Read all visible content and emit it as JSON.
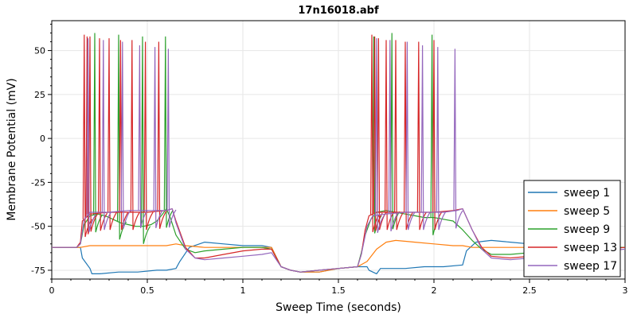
{
  "chart_data": {
    "type": "line",
    "title": "17n16018.abf",
    "xlabel": "Sweep Time (seconds)",
    "ylabel": "Membrane Potential (mV)",
    "xlim": [
      0,
      3
    ],
    "ylim": [
      -80,
      67
    ],
    "xticks": [
      0,
      0.5,
      1,
      1.5,
      2,
      2.5,
      3
    ],
    "xtick_labels": [
      "0",
      "0.5",
      "1",
      "1.5",
      "2",
      "2.5",
      "3"
    ],
    "yticks": [
      -75,
      -50,
      -25,
      0,
      25,
      50
    ],
    "ytick_labels": [
      "-75",
      "-50",
      "-25",
      "0",
      "25",
      "50"
    ],
    "grid": true,
    "legend_position": "bottom-right",
    "series": [
      {
        "name": "sweep 1",
        "color": "#1f77b4",
        "x": [
          0,
          0.15,
          0.16,
          0.2,
          0.21,
          0.25,
          0.35,
          0.45,
          0.55,
          0.6,
          0.65,
          0.67,
          0.72,
          0.8,
          0.9,
          1.0,
          1.1,
          1.15,
          1.2,
          1.25,
          1.3,
          1.4,
          1.5,
          1.6,
          1.65,
          1.66,
          1.7,
          1.72,
          1.75,
          1.85,
          1.95,
          2.05,
          2.15,
          2.15,
          2.17,
          2.22,
          2.3,
          2.4,
          2.5,
          2.55,
          2.6,
          2.7,
          2.8,
          2.9,
          3.0
        ],
        "y": [
          -62,
          -62,
          -68,
          -74,
          -77,
          -77,
          -76,
          -76,
          -75,
          -75,
          -74,
          -70,
          -62,
          -59,
          -60,
          -61,
          -61,
          -62,
          -73,
          -75,
          -76,
          -76,
          -74,
          -73,
          -73,
          -75,
          -77,
          -74,
          -74,
          -74,
          -73,
          -73,
          -72,
          -72,
          -64,
          -59,
          -58,
          -59,
          -60,
          -61,
          -62,
          -61,
          -62,
          -62,
          -62
        ]
      },
      {
        "name": "sweep 5",
        "color": "#ff7f0e",
        "x": [
          0,
          0.15,
          0.2,
          0.3,
          0.4,
          0.5,
          0.6,
          0.65,
          0.7,
          0.8,
          0.9,
          1.0,
          1.1,
          1.15,
          1.2,
          1.25,
          1.3,
          1.4,
          1.5,
          1.6,
          1.65,
          1.7,
          1.75,
          1.8,
          1.9,
          2.0,
          2.1,
          2.15,
          2.2,
          2.3,
          2.4,
          2.5,
          2.6,
          2.7,
          2.8,
          2.9,
          3.0
        ],
        "y": [
          -62,
          -62,
          -61,
          -61,
          -61,
          -61,
          -61,
          -60,
          -61,
          -62,
          -62,
          -62,
          -62,
          -62,
          -73,
          -75,
          -76,
          -76,
          -74,
          -73,
          -70,
          -63,
          -59,
          -58,
          -59,
          -60,
          -61,
          -61,
          -62,
          -62,
          -62,
          -62,
          -62,
          -62,
          -62,
          -62,
          -62
        ]
      },
      {
        "name": "sweep 9",
        "color": "#2ca02c",
        "x": [
          0,
          0.13,
          0.15,
          0.17,
          0.2,
          0.24,
          0.28,
          0.32,
          0.36,
          0.4,
          0.44,
          0.48,
          0.52,
          0.55,
          0.58,
          0.6,
          0.62,
          0.65,
          0.7,
          0.75,
          0.8,
          0.9,
          1.0,
          1.1,
          1.15,
          1.2,
          1.25,
          1.3,
          1.4,
          1.5,
          1.6,
          1.62,
          1.64,
          1.67,
          1.7,
          1.75,
          1.8,
          1.85,
          1.9,
          1.95,
          2.0,
          2.05,
          2.1,
          2.15,
          2.2,
          2.25,
          2.3,
          2.4,
          2.5,
          2.6,
          2.7,
          2.8,
          2.9,
          3.0
        ],
        "y": [
          -62,
          -62,
          -60,
          -49,
          -44,
          -43,
          -44,
          -46,
          -48,
          -49,
          -50,
          -50,
          -49,
          -47,
          -43,
          -40,
          -45,
          -55,
          -63,
          -65,
          -64,
          -63,
          -62,
          -62,
          -63,
          -73,
          -75,
          -76,
          -75,
          -74,
          -73,
          -65,
          -55,
          -46,
          -42,
          -41,
          -42,
          -43,
          -44,
          -45,
          -45,
          -46,
          -47,
          -52,
          -58,
          -63,
          -66,
          -66,
          -65,
          -64,
          -63,
          -62,
          -62,
          -62
        ],
        "spikes": [
          [
            0.225,
            60
          ],
          [
            0.35,
            59
          ],
          [
            0.475,
            58
          ],
          [
            0.595,
            58
          ],
          [
            1.685,
            58
          ],
          [
            1.78,
            60
          ],
          [
            1.99,
            59
          ]
        ]
      },
      {
        "name": "sweep 13",
        "color": "#d62728",
        "x": [
          0,
          0.13,
          0.15,
          0.16,
          0.2,
          0.3,
          0.4,
          0.5,
          0.6,
          0.63,
          0.65,
          0.7,
          0.75,
          0.8,
          0.9,
          1.0,
          1.1,
          1.15,
          1.2,
          1.25,
          1.3,
          1.4,
          1.5,
          1.6,
          1.62,
          1.64,
          1.66,
          1.7,
          1.8,
          1.9,
          2.0,
          2.1,
          2.15,
          2.2,
          2.25,
          2.3,
          2.4,
          2.5,
          2.6,
          2.7,
          2.8,
          2.9,
          3.0
        ],
        "y": [
          -62,
          -62,
          -59,
          -47,
          -43,
          -42,
          -42,
          -42,
          -41,
          -40,
          -47,
          -62,
          -68,
          -68,
          -66,
          -64,
          -63,
          -63,
          -73,
          -75,
          -76,
          -75,
          -74,
          -73,
          -66,
          -52,
          -44,
          -42,
          -42,
          -42,
          -42,
          -41,
          -40,
          -52,
          -62,
          -67,
          -68,
          -67,
          -65,
          -64,
          -63,
          -63,
          -62
        ],
        "spikes": [
          [
            0.17,
            59
          ],
          [
            0.185,
            58
          ],
          [
            0.2,
            58
          ],
          [
            0.25,
            57
          ],
          [
            0.3,
            57
          ],
          [
            0.36,
            56
          ],
          [
            0.42,
            56
          ],
          [
            0.49,
            55
          ],
          [
            0.56,
            55
          ],
          [
            1.675,
            59
          ],
          [
            1.69,
            58
          ],
          [
            1.71,
            57
          ],
          [
            1.75,
            56
          ],
          [
            1.8,
            56
          ],
          [
            1.85,
            55
          ],
          [
            1.92,
            55
          ],
          [
            2.0,
            56
          ]
        ]
      },
      {
        "name": "sweep 17",
        "color": "#9467bd",
        "x": [
          0,
          0.13,
          0.15,
          0.17,
          0.2,
          0.3,
          0.4,
          0.5,
          0.6,
          0.63,
          0.65,
          0.7,
          0.75,
          0.8,
          0.9,
          1.0,
          1.1,
          1.15,
          1.2,
          1.25,
          1.3,
          1.4,
          1.5,
          1.6,
          1.62,
          1.65,
          1.68,
          1.75,
          1.85,
          1.95,
          2.05,
          2.12,
          2.15,
          2.2,
          2.25,
          2.3,
          2.4,
          2.5,
          2.6,
          2.7,
          2.8,
          2.9,
          3.0
        ],
        "y": [
          -62,
          -62,
          -60,
          -46,
          -42,
          -42,
          -41,
          -41,
          -41,
          -40,
          -48,
          -63,
          -68,
          -69,
          -68,
          -67,
          -66,
          -65,
          -73,
          -75,
          -76,
          -75,
          -74,
          -73,
          -66,
          -50,
          -44,
          -43,
          -42,
          -42,
          -42,
          -41,
          -40,
          -52,
          -63,
          -68,
          -69,
          -68,
          -67,
          -66,
          -65,
          -64,
          -63
        ],
        "spikes": [
          [
            0.19,
            57
          ],
          [
            0.27,
            56
          ],
          [
            0.37,
            55
          ],
          [
            0.46,
            53
          ],
          [
            0.54,
            52
          ],
          [
            0.61,
            51
          ],
          [
            1.7,
            57
          ],
          [
            1.77,
            56
          ],
          [
            1.86,
            55
          ],
          [
            1.94,
            53
          ],
          [
            2.02,
            52
          ],
          [
            2.11,
            51
          ]
        ]
      }
    ]
  }
}
